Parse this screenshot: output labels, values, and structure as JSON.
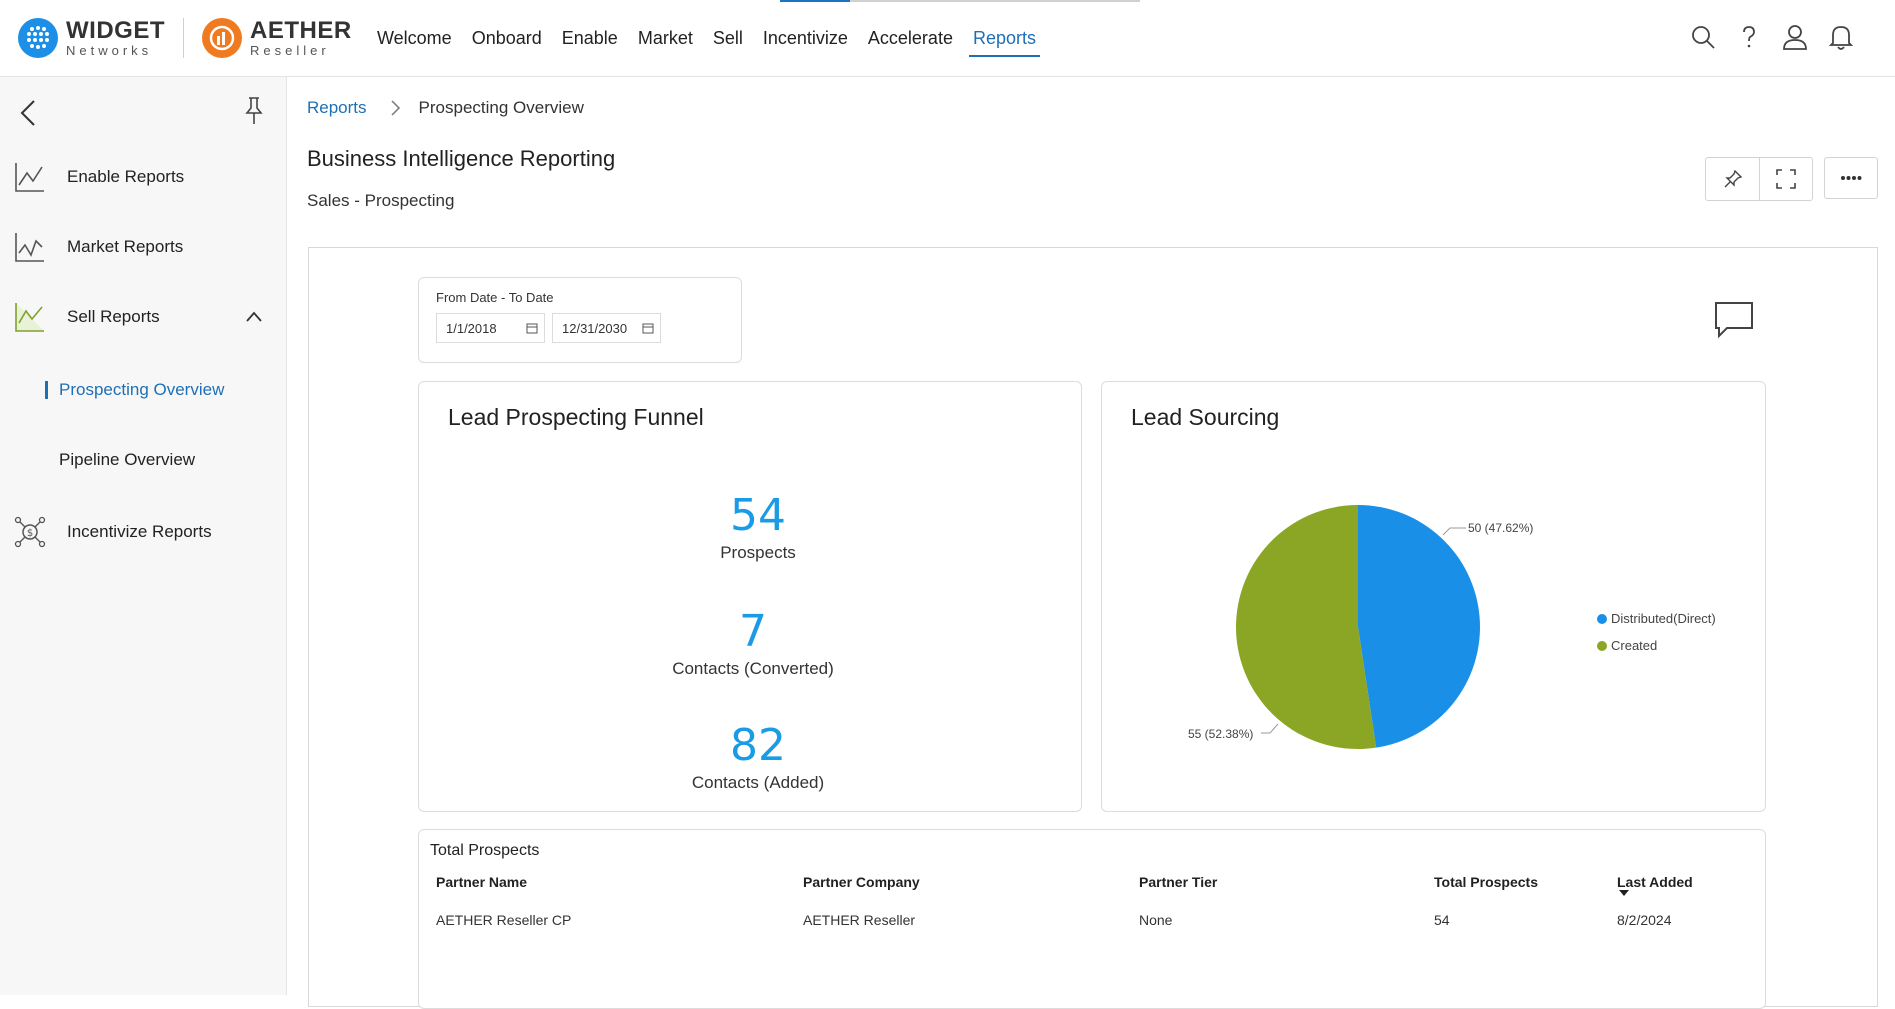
{
  "brand": {
    "primary_name": "WIDGET",
    "primary_sub": "Networks",
    "secondary_name": "AETHER",
    "secondary_sub": "Reseller",
    "widget_color": "#1d8fe6",
    "aether_color": "#f07a1f"
  },
  "nav": {
    "items": [
      "Welcome",
      "Onboard",
      "Enable",
      "Market",
      "Sell",
      "Incentivize",
      "Accelerate",
      "Reports"
    ],
    "active": "Reports"
  },
  "top_icons": [
    "search-icon",
    "help-icon",
    "user-icon",
    "notification-bell-icon"
  ],
  "sidebar": {
    "items": [
      {
        "label": "Enable Reports",
        "icon": "chart-line-icon"
      },
      {
        "label": "Market Reports",
        "icon": "chart-line-icon"
      },
      {
        "label": "Sell Reports",
        "icon": "chart-line-icon",
        "expanded": true
      },
      {
        "label": "Incentivize Reports",
        "icon": "dollar-network-icon"
      }
    ],
    "sub_items": [
      {
        "label": "Prospecting Overview",
        "active": true
      },
      {
        "label": "Pipeline Overview",
        "active": false
      }
    ]
  },
  "breadcrumb": {
    "root": "Reports",
    "current": "Prospecting Overview"
  },
  "page": {
    "title": "Business Intelligence Reporting",
    "subtitle": "Sales - Prospecting"
  },
  "date_filter": {
    "label": "From Date - To Date",
    "from": "1/1/2018",
    "to": "12/31/2030"
  },
  "funnel": {
    "title": "Lead Prospecting Funnel",
    "metrics": [
      {
        "value": "54",
        "label": "Prospects"
      },
      {
        "value": "7",
        "label": "Contacts (Converted)"
      },
      {
        "value": "82",
        "label": "Contacts (Added)"
      }
    ],
    "accent": "#1a9be6"
  },
  "lead_sourcing": {
    "title": "Lead Sourcing",
    "label_distributed": "50 (47.62%)",
    "label_created": "55 (52.38%)"
  },
  "chart_data": {
    "type": "pie",
    "title": "Lead Sourcing",
    "series": [
      {
        "name": "Distributed(Direct)",
        "value": 50,
        "percent": 47.62,
        "color": "#1a8fe8"
      },
      {
        "name": "Created",
        "value": 55,
        "percent": 52.38,
        "color": "#8aa624"
      }
    ],
    "legend_position": "right"
  },
  "table": {
    "title": "Total Prospects",
    "columns": [
      "Partner Name",
      "Partner Company",
      "Partner Tier",
      "Total Prospects",
      "Last Added"
    ],
    "sort_column": "Last Added",
    "rows": [
      [
        "AETHER Reseller CP",
        "AETHER Reseller",
        "None",
        "54",
        "8/2/2024"
      ]
    ]
  }
}
